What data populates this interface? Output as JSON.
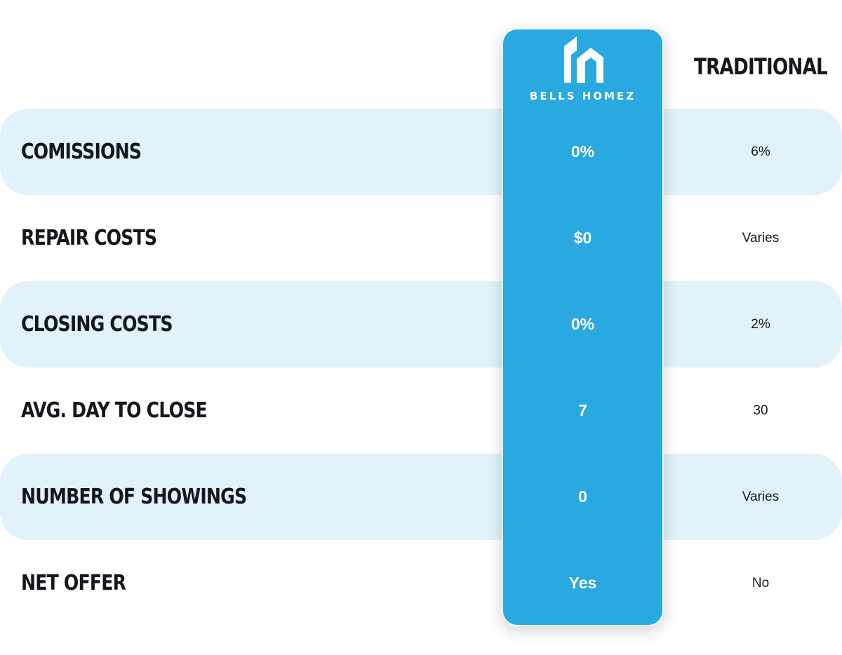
{
  "columns": {
    "brand": {
      "name": "Bells Homez",
      "logo_icon": "house-logo-icon",
      "background_color": "#29a9df"
    },
    "traditional": {
      "header": "TRADITIONAL"
    }
  },
  "colors": {
    "band": "#e1f2fb",
    "label_text": "#14171c",
    "brand_text": "#ffffff"
  },
  "rows": [
    {
      "label": "Comissions",
      "brand_value": "0%",
      "traditional_value": "6%",
      "shaded": true
    },
    {
      "label": "Repair Costs",
      "brand_value": "$0",
      "traditional_value": "Varies",
      "shaded": false
    },
    {
      "label": "Closing Costs",
      "brand_value": "0%",
      "traditional_value": "2%",
      "shaded": true
    },
    {
      "label": "Avg. Day To Close",
      "brand_value": "7",
      "traditional_value": "30",
      "shaded": false
    },
    {
      "label": "Number of Showings",
      "brand_value": "0",
      "traditional_value": "Varies",
      "shaded": true
    },
    {
      "label": "Net Offer",
      "brand_value": "Yes",
      "traditional_value": "No",
      "shaded": false
    }
  ]
}
